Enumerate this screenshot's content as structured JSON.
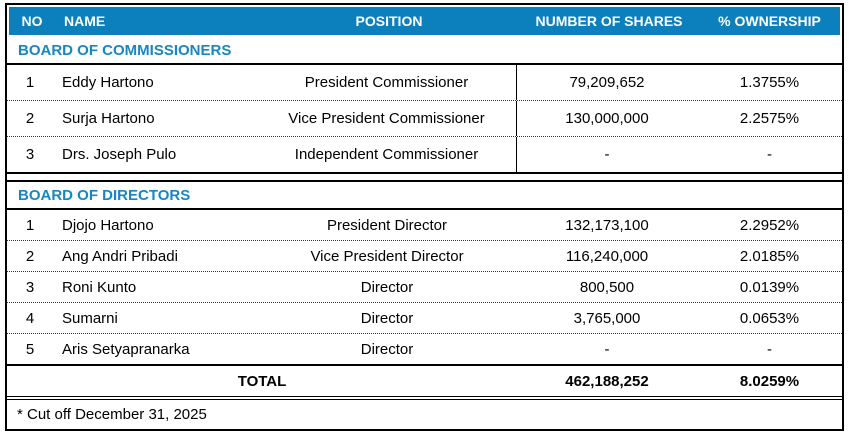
{
  "table": {
    "columns": [
      "NO",
      "NAME",
      "POSITION",
      "NUMBER OF SHARES",
      "% OWNERSHIP"
    ],
    "sections": [
      {
        "title": "BOARD OF COMMISSIONERS",
        "rows": [
          {
            "no": "1",
            "name": "Eddy Hartono",
            "position": "President Commissioner",
            "shares": "79,209,652",
            "ownership": "1.3755%"
          },
          {
            "no": "2",
            "name": "Surja Hartono",
            "position": "Vice President Commissioner",
            "shares": "130,000,000",
            "ownership": "2.2575%"
          },
          {
            "no": "3",
            "name": "Drs. Joseph Pulo",
            "position": "Independent Commissioner",
            "shares": "-",
            "ownership": "-"
          }
        ]
      },
      {
        "title": "BOARD OF DIRECTORS",
        "rows": [
          {
            "no": "1",
            "name": "Djojo Hartono",
            "position": "President Director",
            "shares": "132,173,100",
            "ownership": "2.2952%"
          },
          {
            "no": "2",
            "name": "Ang Andri Pribadi",
            "position": "Vice President Director",
            "shares": "116,240,000",
            "ownership": "2.0185%"
          },
          {
            "no": "3",
            "name": "Roni Kunto",
            "position": "Director",
            "shares": "800,500",
            "ownership": "0.0139%"
          },
          {
            "no": "4",
            "name": "Sumarni",
            "position": "Director",
            "shares": "3,765,000",
            "ownership": "0.0653%"
          },
          {
            "no": "5",
            "name": "Aris Setyapranarka",
            "position": "Director",
            "shares": "-",
            "ownership": "-"
          }
        ]
      }
    ],
    "total": {
      "label": "TOTAL",
      "shares": "462,188,252",
      "ownership": "8.0259%"
    },
    "footnote": "* Cut off December 31, 2025",
    "colors": {
      "header_bg": "#0B80BD",
      "header_text": "#FFFFFF",
      "section_title_text": "#1787C4",
      "body_text": "#000000",
      "border": "#000000"
    }
  }
}
